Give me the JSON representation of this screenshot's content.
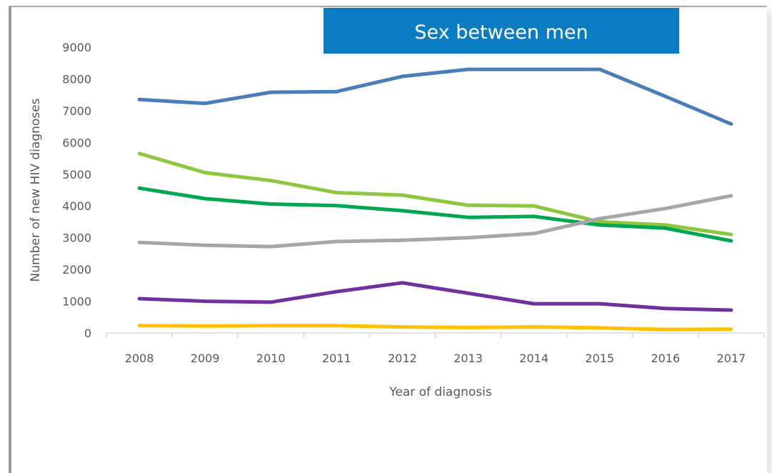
{
  "chart_data": {
    "type": "line",
    "title": "Sex between men",
    "xlabel": "Year of diagnosis",
    "ylabel": "Number of new HIV diagnoses",
    "x": [
      "2008",
      "2009",
      "2010",
      "2011",
      "2012",
      "2013",
      "2014",
      "2015",
      "2016",
      "2017"
    ],
    "ylim": [
      0,
      9000
    ],
    "yticks": [
      0,
      1000,
      2000,
      3000,
      4000,
      5000,
      6000,
      7000,
      8000,
      9000
    ],
    "grid": false,
    "legend": "none",
    "title_background": "#0b7cc1",
    "series": [
      {
        "color": "#4a7ebb",
        "values": [
          7350,
          7230,
          7580,
          7600,
          8080,
          8300,
          8300,
          8300,
          7450,
          6580
        ]
      },
      {
        "color": "#8dc63f",
        "values": [
          5650,
          5050,
          4800,
          4420,
          4340,
          4020,
          4000,
          3500,
          3400,
          3100
        ]
      },
      {
        "color": "#00a651",
        "values": [
          4560,
          4230,
          4060,
          4010,
          3850,
          3640,
          3670,
          3400,
          3300,
          2900
        ]
      },
      {
        "color": "#a6a6a6",
        "values": [
          2850,
          2760,
          2720,
          2880,
          2920,
          3000,
          3130,
          3600,
          3920,
          4320
        ]
      },
      {
        "color": "#7030a0",
        "values": [
          1080,
          1000,
          970,
          1300,
          1580,
          1250,
          920,
          920,
          770,
          720
        ]
      },
      {
        "color": "#ffc000",
        "values": [
          230,
          220,
          230,
          230,
          190,
          170,
          190,
          160,
          110,
          120
        ]
      }
    ]
  }
}
